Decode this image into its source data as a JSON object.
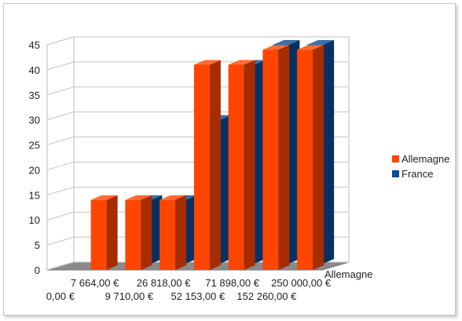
{
  "chart_data": {
    "type": "bar",
    "variant": "3d-clustered-column",
    "title": "",
    "xlabel": "",
    "ylabel": "",
    "ylim": [
      0,
      45
    ],
    "yticks": [
      0,
      5,
      10,
      15,
      20,
      25,
      30,
      35,
      40,
      45
    ],
    "grid": true,
    "legend_position": "right",
    "depth_label": "Allemagne",
    "categories": [
      "0,00 €",
      "7 664,00 €",
      "9 710,00 €",
      "26 818,00 €",
      "52 153,00 €",
      "71 898,00 €",
      "152 260,00 €",
      "250 000,00 €"
    ],
    "series": [
      {
        "name": "France",
        "color": "#0a4c96",
        "values": [
          0,
          0,
          14,
          14,
          30,
          41,
          45,
          45
        ]
      },
      {
        "name": "Allemagne",
        "color": "#ff4500",
        "values": [
          0,
          14,
          14,
          14,
          41,
          41,
          44,
          44
        ]
      }
    ]
  }
}
